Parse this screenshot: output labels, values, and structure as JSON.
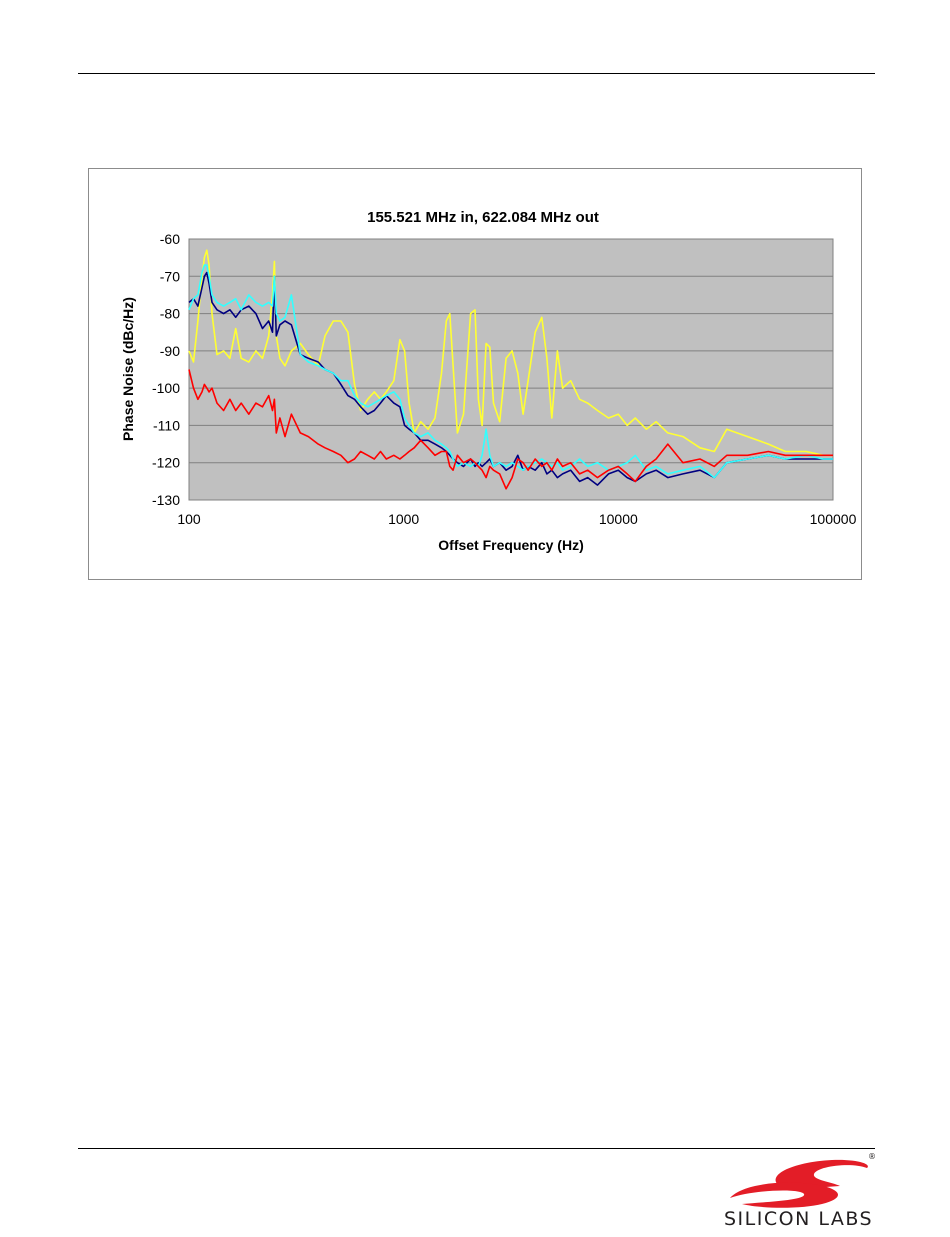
{
  "chart_data": {
    "type": "line",
    "title": "155.521 MHz in, 622.084 MHz out",
    "xlabel": "Offset Frequency (Hz)",
    "ylabel": "Phase Noise (dBc/Hz)",
    "x_scale": "log",
    "xlim": [
      100,
      100000
    ],
    "ylim": [
      -130,
      -60
    ],
    "x_ticks": [
      "100",
      "1000",
      "10000",
      "100000"
    ],
    "y_ticks": [
      "-60",
      "-70",
      "-80",
      "-90",
      "-100",
      "-110",
      "-120",
      "-130"
    ],
    "grid": true,
    "plot_background": "#c0c0c0",
    "series": [
      {
        "color": "#ffff33",
        "x": [
          100,
          105,
          110,
          115,
          118,
          121,
          124,
          128,
          135,
          145,
          155,
          165,
          175,
          190,
          205,
          220,
          235,
          245,
          250,
          255,
          265,
          280,
          300,
          330,
          360,
          400,
          430,
          470,
          510,
          550,
          590,
          630,
          680,
          730,
          780,
          830,
          900,
          960,
          1010,
          1060,
          1120,
          1200,
          1300,
          1400,
          1500,
          1580,
          1640,
          1700,
          1780,
          1900,
          2050,
          2150,
          2230,
          2320,
          2420,
          2520,
          2620,
          2800,
          3000,
          3200,
          3400,
          3600,
          3800,
          4100,
          4400,
          4650,
          4900,
          5200,
          5500,
          6000,
          6600,
          7200,
          8000,
          9000,
          10000,
          11000,
          12000,
          13500,
          15000,
          17000,
          20000,
          24000,
          28000,
          32000,
          40000,
          50000,
          60000,
          75000,
          90000,
          100000
        ],
        "y": [
          -90,
          -93,
          -82,
          -70,
          -65,
          -63,
          -67,
          -80,
          -91,
          -90,
          -92,
          -84,
          -92,
          -93,
          -90,
          -92,
          -86,
          -75,
          -66,
          -86,
          -92,
          -94,
          -90,
          -88,
          -91,
          -94,
          -86,
          -82,
          -82,
          -85,
          -99,
          -106,
          -103,
          -101,
          -103,
          -101,
          -98,
          -87,
          -90,
          -104,
          -112,
          -109,
          -111,
          -108,
          -96,
          -82,
          -80,
          -94,
          -112,
          -107,
          -80,
          -79,
          -103,
          -110,
          -88,
          -89,
          -104,
          -109,
          -92,
          -90,
          -96,
          -107,
          -98,
          -85,
          -81,
          -92,
          -108,
          -90,
          -100,
          -98,
          -103,
          -104,
          -106,
          -108,
          -107,
          -110,
          -108,
          -111,
          -109,
          -112,
          -113,
          -116,
          -117,
          -111,
          -113,
          -115,
          -117,
          -117,
          -118,
          -118
        ]
      },
      {
        "color": "#000080",
        "x": [
          100,
          105,
          110,
          115,
          118,
          121,
          124,
          128,
          135,
          145,
          155,
          165,
          175,
          190,
          205,
          220,
          235,
          245,
          250,
          255,
          265,
          280,
          300,
          330,
          360,
          400,
          430,
          470,
          510,
          550,
          590,
          630,
          680,
          730,
          780,
          830,
          900,
          960,
          1010,
          1060,
          1120,
          1200,
          1300,
          1400,
          1500,
          1580,
          1640,
          1700,
          1780,
          1900,
          2050,
          2150,
          2230,
          2320,
          2420,
          2520,
          2620,
          2800,
          3000,
          3200,
          3400,
          3600,
          3800,
          4100,
          4400,
          4650,
          4900,
          5200,
          5500,
          6000,
          6600,
          7200,
          8000,
          9000,
          10000,
          11000,
          12000,
          13500,
          15000,
          17000,
          20000,
          24000,
          28000,
          32000,
          40000,
          50000,
          60000,
          75000,
          90000,
          100000
        ],
        "y": [
          -77,
          -76,
          -78,
          -73,
          -70,
          -69,
          -72,
          -77,
          -79,
          -80,
          -79,
          -81,
          -79,
          -78,
          -80,
          -84,
          -82,
          -85,
          -70,
          -86,
          -83,
          -82,
          -83,
          -91,
          -92,
          -93,
          -95,
          -96,
          -99,
          -102,
          -103,
          -105,
          -107,
          -106,
          -104,
          -102,
          -104,
          -105,
          -110,
          -111,
          -112,
          -114,
          -114,
          -115,
          -116,
          -117,
          -118,
          -119,
          -120,
          -121,
          -119,
          -121,
          -120,
          -121,
          -120,
          -119,
          -121,
          -120,
          -122,
          -121,
          -118,
          -122,
          -121,
          -122,
          -120,
          -123,
          -122,
          -124,
          -123,
          -122,
          -125,
          -124,
          -126,
          -123,
          -122,
          -124,
          -125,
          -123,
          -122,
          -124,
          -123,
          -122,
          -124,
          -120,
          -119,
          -118,
          -119,
          -119,
          -119,
          -119
        ]
      },
      {
        "color": "#33ffff",
        "x": [
          100,
          105,
          110,
          115,
          118,
          121,
          124,
          128,
          135,
          145,
          155,
          165,
          175,
          190,
          205,
          220,
          235,
          245,
          250,
          255,
          265,
          280,
          300,
          330,
          360,
          400,
          430,
          470,
          510,
          550,
          590,
          630,
          680,
          730,
          780,
          830,
          900,
          960,
          1010,
          1060,
          1120,
          1200,
          1300,
          1400,
          1500,
          1580,
          1640,
          1700,
          1780,
          1900,
          2050,
          2150,
          2230,
          2320,
          2420,
          2520,
          2620,
          2800,
          3000,
          3200,
          3400,
          3600,
          3800,
          4100,
          4400,
          4650,
          4900,
          5200,
          5500,
          6000,
          6600,
          7200,
          8000,
          9000,
          10000,
          11000,
          12000,
          13500,
          15000,
          17000,
          20000,
          24000,
          28000,
          32000,
          40000,
          50000,
          60000,
          75000,
          90000,
          100000
        ],
        "y": [
          -79,
          -76,
          -75,
          -69,
          -67,
          -67,
          -70,
          -75,
          -77,
          -78,
          -77,
          -76,
          -79,
          -75,
          -77,
          -78,
          -77,
          -78,
          -70,
          -80,
          -82,
          -81,
          -75,
          -91,
          -93,
          -94,
          -95,
          -96,
          -98,
          -98,
          -102,
          -104,
          -105,
          -104,
          -103,
          -102,
          -101,
          -103,
          -108,
          -110,
          -112,
          -113,
          -112,
          -114,
          -115,
          -116,
          -117,
          -119,
          -121,
          -120,
          -121,
          -120,
          -121,
          -118,
          -111,
          -118,
          -121,
          -120,
          -121,
          -120,
          -121,
          -122,
          -121,
          -120,
          -119,
          -120,
          -121,
          -120,
          -122,
          -121,
          -119,
          -121,
          -120,
          -122,
          -121,
          -120,
          -118,
          -122,
          -121,
          -123,
          -122,
          -121,
          -124,
          -120,
          -119,
          -118,
          -119,
          -118,
          -119,
          -119
        ]
      },
      {
        "color": "#ff0000",
        "x": [
          100,
          105,
          110,
          115,
          118,
          121,
          124,
          128,
          135,
          145,
          155,
          165,
          175,
          190,
          205,
          220,
          235,
          245,
          250,
          255,
          265,
          280,
          300,
          330,
          360,
          400,
          430,
          470,
          510,
          550,
          590,
          630,
          680,
          730,
          780,
          830,
          900,
          960,
          1010,
          1060,
          1120,
          1200,
          1300,
          1400,
          1500,
          1580,
          1640,
          1700,
          1780,
          1900,
          2050,
          2150,
          2230,
          2320,
          2420,
          2520,
          2620,
          2800,
          3000,
          3200,
          3400,
          3600,
          3800,
          4100,
          4400,
          4650,
          4900,
          5200,
          5500,
          6000,
          6600,
          7200,
          8000,
          9000,
          10000,
          11000,
          12000,
          13500,
          15000,
          17000,
          20000,
          24000,
          28000,
          32000,
          40000,
          50000,
          60000,
          75000,
          90000,
          100000
        ],
        "y": [
          -95,
          -100,
          -103,
          -101,
          -99,
          -100,
          -101,
          -100,
          -104,
          -106,
          -103,
          -106,
          -104,
          -107,
          -104,
          -105,
          -102,
          -106,
          -103,
          -112,
          -108,
          -113,
          -107,
          -112,
          -113,
          -115,
          -116,
          -117,
          -118,
          -120,
          -119,
          -117,
          -118,
          -119,
          -117,
          -119,
          -118,
          -119,
          -118,
          -117,
          -116,
          -114,
          -116,
          -118,
          -117,
          -117,
          -121,
          -122,
          -118,
          -120,
          -119,
          -120,
          -121,
          -122,
          -124,
          -121,
          -122,
          -123,
          -127,
          -124,
          -119,
          -120,
          -122,
          -119,
          -121,
          -120,
          -122,
          -119,
          -121,
          -120,
          -123,
          -122,
          -124,
          -122,
          -121,
          -123,
          -125,
          -121,
          -119,
          -115,
          -120,
          -119,
          -121,
          -118,
          -118,
          -117,
          -118,
          -118,
          -118,
          -118
        ]
      }
    ]
  },
  "logo": {
    "brand_text": "SILICON LABS",
    "registered_mark": "®",
    "brand_color": "#e31d27"
  }
}
